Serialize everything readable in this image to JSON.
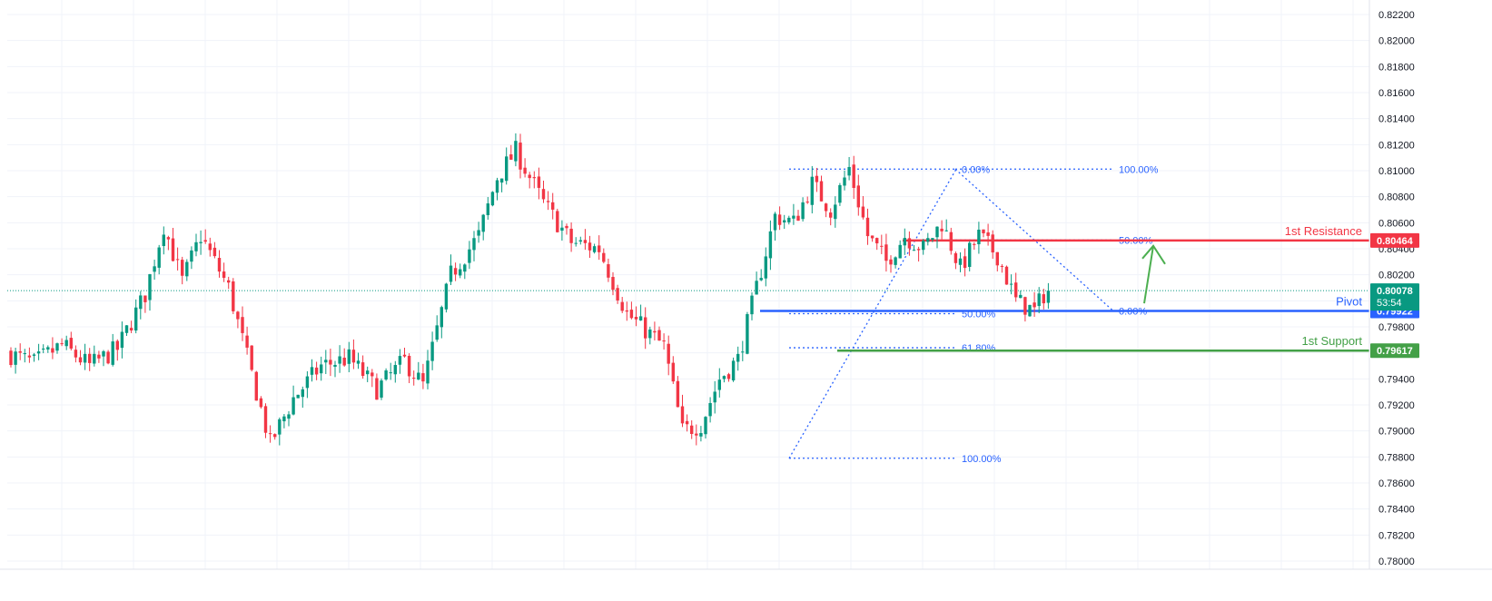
{
  "colors": {
    "up": "#089981",
    "down": "#f23645",
    "resistance": "#f23645",
    "pivot": "#2962ff",
    "support": "#43a047",
    "fib": "#2962ff",
    "arrow": "#4caf50",
    "grid": "#f0f3fa",
    "axis_text": "#131722",
    "price_line": "#089981"
  },
  "chart_data": {
    "type": "candlestick",
    "ylim": [
      0.78,
      0.822
    ],
    "y_ticks": [
      "0.82200",
      "0.82000",
      "0.81800",
      "0.81600",
      "0.81400",
      "0.81200",
      "0.81000",
      "0.80800",
      "0.80600",
      "0.80400",
      "0.80200",
      "0.80000",
      "0.79800",
      "0.79600",
      "0.79400",
      "0.79200",
      "0.79000",
      "0.78800",
      "0.78600",
      "0.78400",
      "0.78200",
      "0.78000"
    ],
    "grid": true,
    "candle_count": 240,
    "anchors": [
      [
        0,
        0.796
      ],
      [
        6,
        0.7952
      ],
      [
        12,
        0.7966
      ],
      [
        18,
        0.795
      ],
      [
        24,
        0.7963
      ],
      [
        30,
        0.8005
      ],
      [
        34,
        0.8058
      ],
      [
        38,
        0.8015
      ],
      [
        42,
        0.805
      ],
      [
        48,
        0.801
      ],
      [
        54,
        0.793
      ],
      [
        57,
        0.789
      ],
      [
        62,
        0.7925
      ],
      [
        68,
        0.795
      ],
      [
        74,
        0.7956
      ],
      [
        80,
        0.7932
      ],
      [
        86,
        0.7954
      ],
      [
        90,
        0.7935
      ],
      [
        96,
        0.802
      ],
      [
        102,
        0.805
      ],
      [
        106,
        0.8095
      ],
      [
        110,
        0.8115
      ],
      [
        116,
        0.8075
      ],
      [
        122,
        0.8045
      ],
      [
        128,
        0.804
      ],
      [
        134,
        0.799
      ],
      [
        142,
        0.7965
      ],
      [
        146,
        0.79
      ],
      [
        150,
        0.7905
      ],
      [
        154,
        0.794
      ],
      [
        158,
        0.7955
      ],
      [
        162,
        0.801
      ],
      [
        166,
        0.8065
      ],
      [
        170,
        0.806
      ],
      [
        174,
        0.809
      ],
      [
        178,
        0.807
      ],
      [
        182,
        0.8102
      ],
      [
        186,
        0.805
      ],
      [
        190,
        0.803
      ],
      [
        194,
        0.805
      ],
      [
        198,
        0.804
      ],
      [
        202,
        0.806
      ],
      [
        206,
        0.8025
      ],
      [
        210,
        0.805
      ],
      [
        214,
        0.8035
      ],
      [
        218,
        0.8
      ],
      [
        222,
        0.7992
      ],
      [
        224,
        0.8005
      ]
    ],
    "levels": [
      {
        "label": "1st Resistance",
        "price": 0.80464,
        "price_label": "0.80464",
        "color_key": "resistance",
        "x_start": 994
      },
      {
        "label": "Pivot",
        "price": 0.79922,
        "price_label": "0.79922",
        "color_key": "pivot",
        "x_start": 837
      },
      {
        "label": "1st Support",
        "price": 0.79617,
        "price_label": "0.79617",
        "color_key": "support",
        "x_start": 922
      }
    ],
    "current_price": {
      "price": 0.80078,
      "label": "0.80078",
      "countdown": "53:54"
    },
    "fib_right": {
      "top": 0.81012,
      "bottom": 0.79922,
      "levels": [
        {
          "label": "0.00%",
          "price": 0.79922
        },
        {
          "label": "50.00%",
          "price": 0.80467
        },
        {
          "label": "100.00%",
          "price": 0.81012
        }
      ]
    },
    "fib_left": {
      "top": 0.81012,
      "bottom": 0.7879,
      "levels": [
        {
          "label": "0.00%",
          "price": 0.81012
        },
        {
          "label": "50.00%",
          "price": 0.79901
        },
        {
          "label": "61.80%",
          "price": 0.79639
        },
        {
          "label": "100.00%",
          "price": 0.7879
        }
      ]
    },
    "projection_arrow": {
      "from": 0.80078,
      "to": 0.80464
    }
  }
}
